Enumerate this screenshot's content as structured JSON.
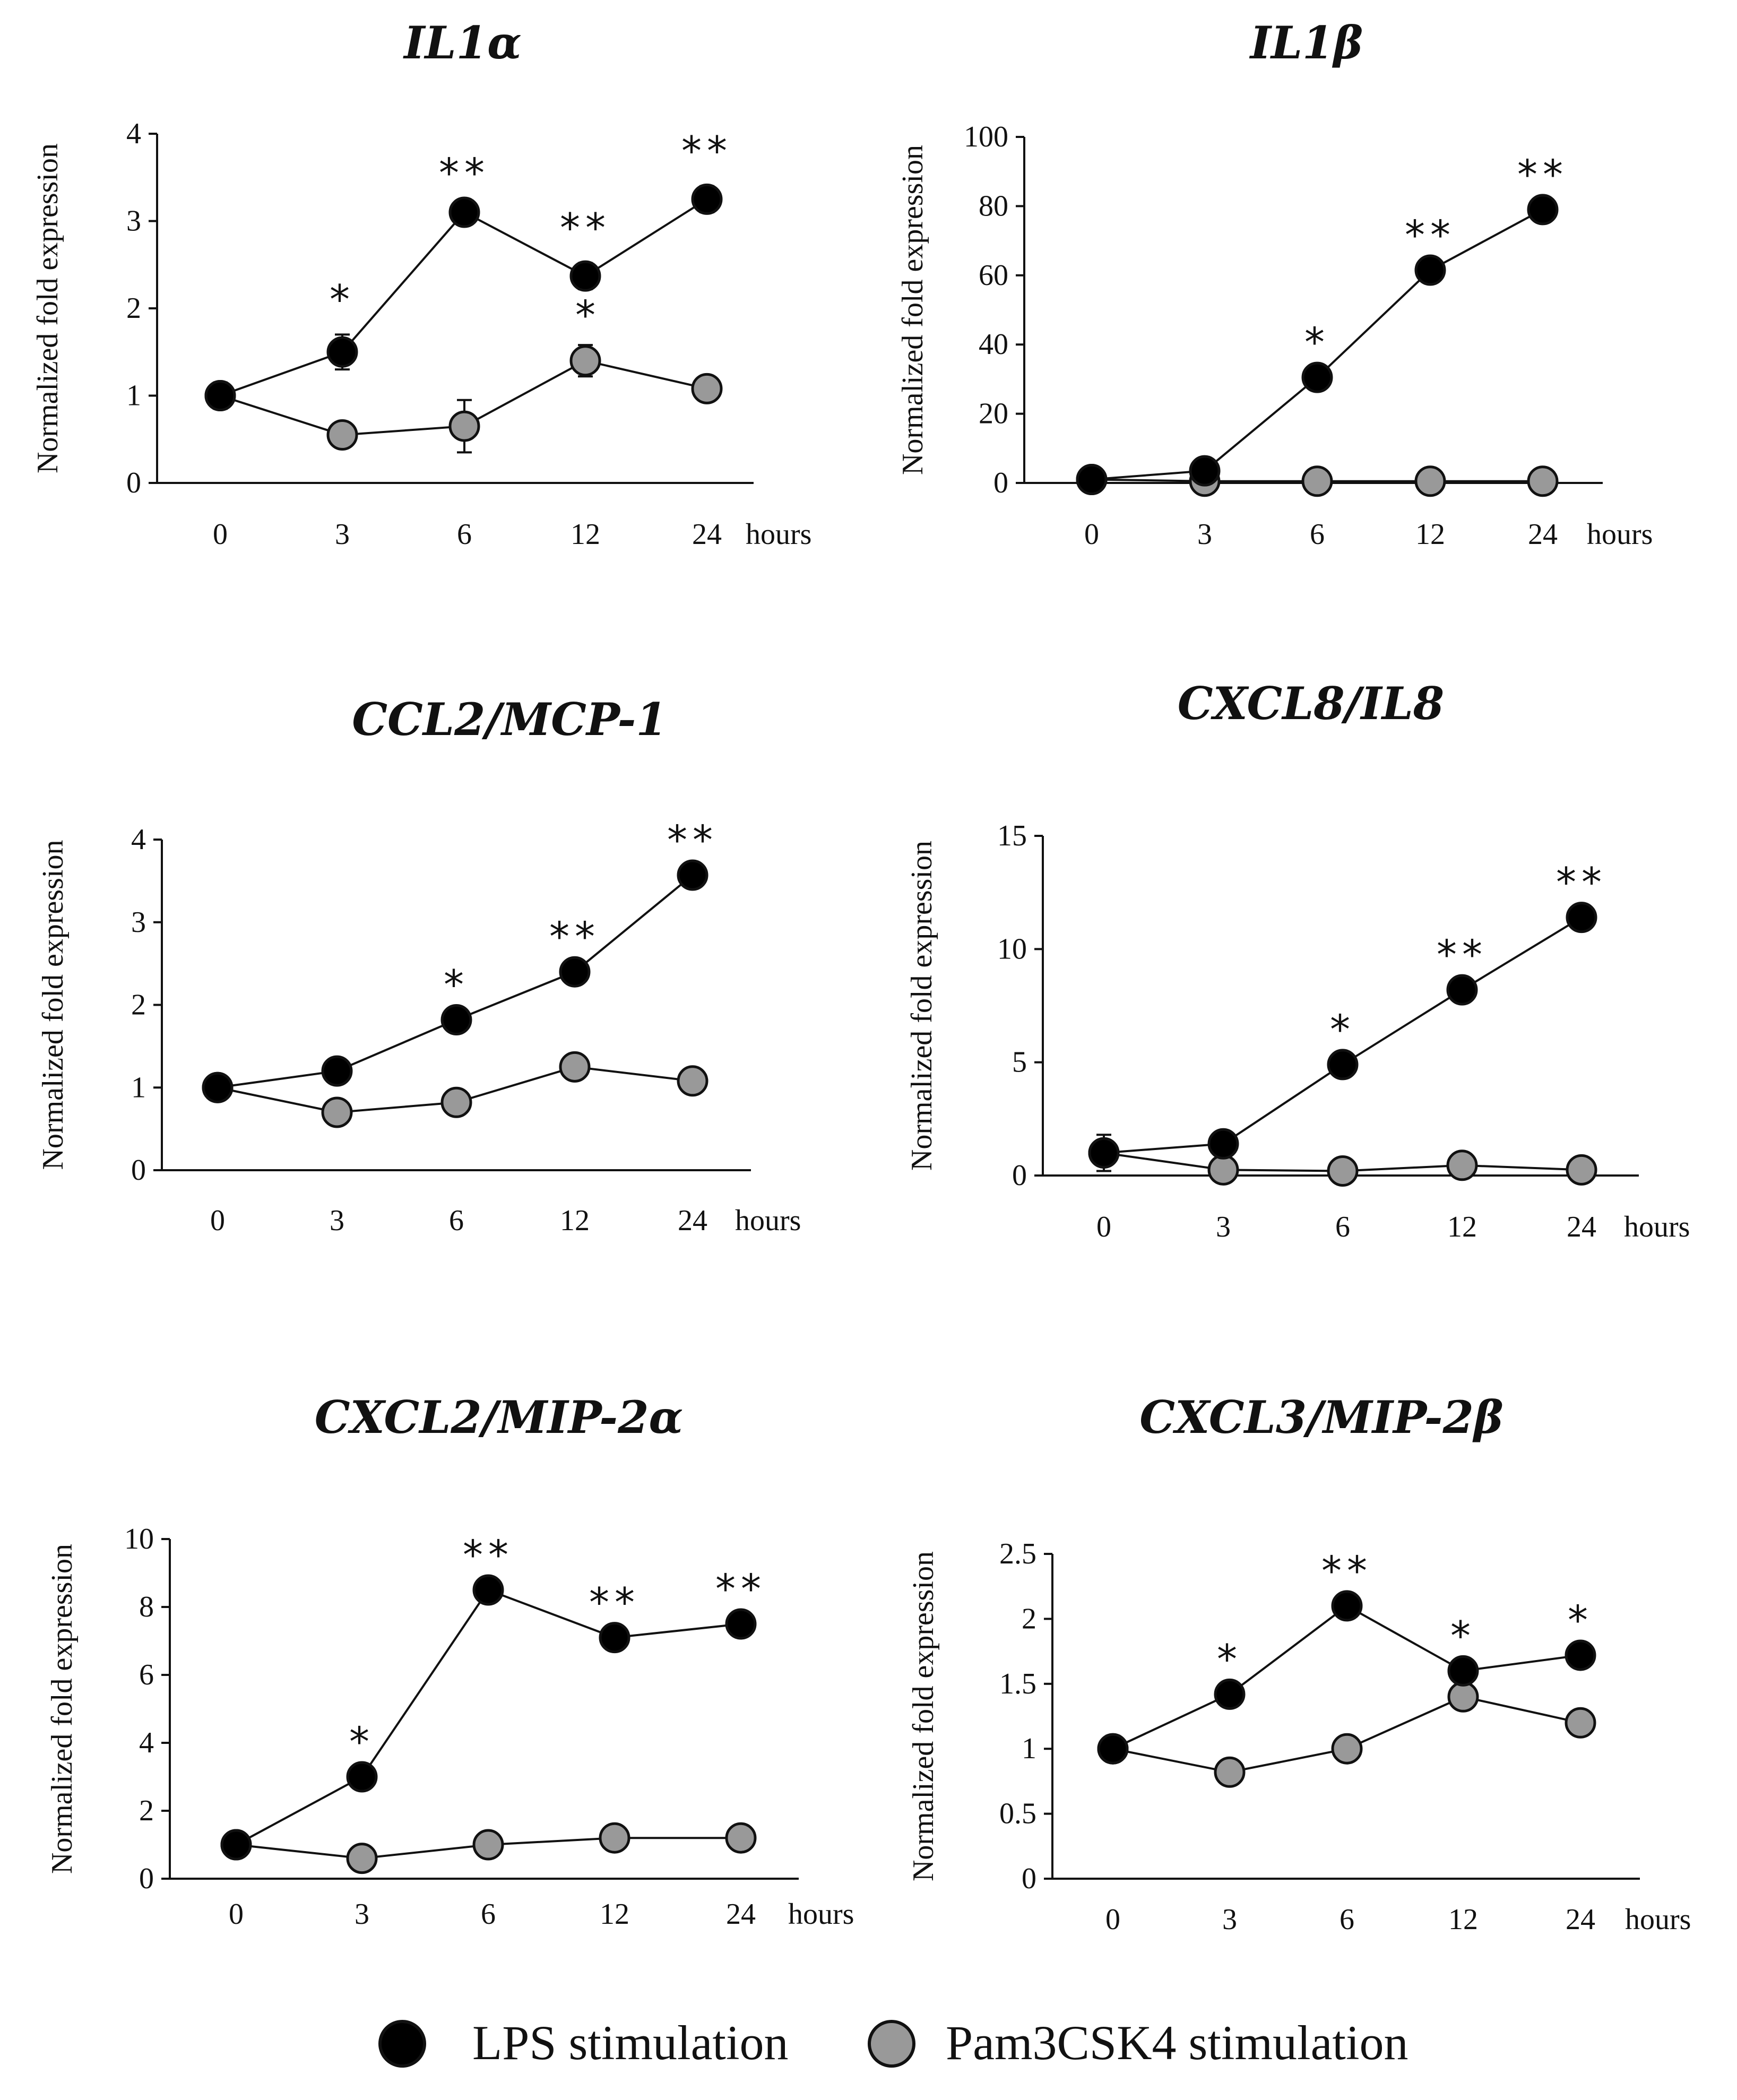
{
  "x_unit_label": "hours",
  "y_axis_label": "Normalized fold expression",
  "colors": {
    "lps": "#000000",
    "pam": "#999999",
    "line": "#111111"
  },
  "legend": [
    {
      "label": "LPS stimulation",
      "color": "#000000"
    },
    {
      "label": "Pam3CSK4 stimulation",
      "color": "#999999"
    }
  ],
  "chart_data": [
    {
      "type": "line",
      "title": "IL1α",
      "categories": [
        "0",
        "3",
        "6",
        "12",
        "24"
      ],
      "ylim": [
        0,
        4
      ],
      "yticks": [
        "0",
        "1",
        "2",
        "3",
        "4"
      ],
      "xlabel": "hours",
      "ylabel": "Normalized fold expression",
      "series": [
        {
          "name": "LPS stimulation",
          "values": [
            1.0,
            1.5,
            3.1,
            2.37,
            3.25
          ],
          "errors": [
            0.15,
            0.2,
            0.05,
            0.15,
            0.15
          ]
        },
        {
          "name": "Pam3CSK4 stimulation",
          "values": [
            1.0,
            0.55,
            0.65,
            1.4,
            1.08
          ],
          "errors": [
            0.15,
            0.05,
            0.3,
            0.18,
            0.12
          ]
        }
      ],
      "annotations": [
        "",
        "*",
        "**",
        "**",
        "**"
      ],
      "annotations_pam": [
        "",
        "",
        "",
        "*",
        ""
      ]
    },
    {
      "type": "line",
      "title": "IL1β",
      "categories": [
        "0",
        "3",
        "6",
        "12",
        "24"
      ],
      "ylim": [
        0,
        100
      ],
      "yticks": [
        "0",
        "20",
        "40",
        "60",
        "80",
        "100"
      ],
      "xlabel": "hours",
      "ylabel": "Normalized fold expression",
      "series": [
        {
          "name": "LPS stimulation",
          "values": [
            1,
            3.5,
            30.5,
            61.5,
            79
          ],
          "errors": [
            0,
            0,
            0,
            0,
            0
          ]
        },
        {
          "name": "Pam3CSK4 stimulation",
          "values": [
            1,
            0.5,
            0.5,
            0.5,
            0.5
          ],
          "errors": [
            0,
            0,
            0,
            0,
            0
          ]
        }
      ],
      "annotations": [
        "",
        "",
        "*",
        "**",
        "**"
      ],
      "annotations_pam": [
        "",
        "",
        "",
        "",
        ""
      ]
    },
    {
      "type": "line",
      "title": "CCL2/MCP-1",
      "categories": [
        "0",
        "3",
        "6",
        "12",
        "24"
      ],
      "ylim": [
        0,
        4
      ],
      "yticks": [
        "0",
        "1",
        "2",
        "3",
        "4"
      ],
      "xlabel": "hours",
      "ylabel": "Normalized fold expression",
      "series": [
        {
          "name": "LPS stimulation",
          "values": [
            1.0,
            1.2,
            1.82,
            2.4,
            3.57
          ],
          "errors": [
            0,
            0,
            0,
            0,
            0
          ]
        },
        {
          "name": "Pam3CSK4 stimulation",
          "values": [
            1.0,
            0.7,
            0.82,
            1.25,
            1.08
          ],
          "errors": [
            0,
            0,
            0,
            0,
            0
          ]
        }
      ],
      "annotations": [
        "",
        "",
        "*",
        "**",
        "**"
      ],
      "annotations_pam": [
        "",
        "",
        "",
        "",
        ""
      ]
    },
    {
      "type": "line",
      "title": "CXCL8/IL8",
      "categories": [
        "0",
        "3",
        "6",
        "12",
        "24"
      ],
      "ylim": [
        0,
        15
      ],
      "yticks": [
        "0",
        "5",
        "10",
        "15"
      ],
      "xlabel": "hours",
      "ylabel": "Normalized fold expression",
      "series": [
        {
          "name": "LPS stimulation",
          "values": [
            1.0,
            1.4,
            4.9,
            8.2,
            11.4
          ],
          "errors": [
            0.8,
            0,
            0,
            0,
            0
          ]
        },
        {
          "name": "Pam3CSK4 stimulation",
          "values": [
            1.0,
            0.25,
            0.2,
            0.45,
            0.25
          ],
          "errors": [
            0,
            0,
            0,
            0,
            0
          ]
        }
      ],
      "annotations": [
        "",
        "",
        "*",
        "**",
        "**"
      ],
      "annotations_pam": [
        "",
        "",
        "",
        "",
        ""
      ]
    },
    {
      "type": "line",
      "title": "CXCL2/MIP-2α",
      "categories": [
        "0",
        "3",
        "6",
        "12",
        "24"
      ],
      "ylim": [
        0,
        10
      ],
      "yticks": [
        "0",
        "2",
        "4",
        "6",
        "8",
        "10"
      ],
      "xlabel": "hours",
      "ylabel": "Normalized fold expression",
      "series": [
        {
          "name": "LPS stimulation",
          "values": [
            1.0,
            3.0,
            8.5,
            7.1,
            7.5
          ],
          "errors": [
            0,
            0,
            0,
            0,
            0
          ]
        },
        {
          "name": "Pam3CSK4 stimulation",
          "values": [
            1.0,
            0.6,
            1.0,
            1.2,
            1.2
          ],
          "errors": [
            0,
            0,
            0,
            0,
            0
          ]
        }
      ],
      "annotations": [
        "",
        "*",
        "**",
        "**",
        "**"
      ],
      "annotations_pam": [
        "",
        "",
        "",
        "",
        ""
      ]
    },
    {
      "type": "line",
      "title": "CXCL3/MIP-2β",
      "categories": [
        "0",
        "3",
        "6",
        "12",
        "24"
      ],
      "ylim": [
        0,
        2.5
      ],
      "yticks": [
        "0",
        "0.5",
        "1",
        "1.5",
        "2",
        "2.5"
      ],
      "xlabel": "hours",
      "ylabel": "Normalized fold expression",
      "series": [
        {
          "name": "LPS stimulation",
          "values": [
            1.0,
            1.42,
            2.1,
            1.6,
            1.72
          ],
          "errors": [
            0.1,
            0,
            0,
            0,
            0
          ]
        },
        {
          "name": "Pam3CSK4 stimulation",
          "values": [
            1.0,
            0.82,
            1.0,
            1.4,
            1.2
          ],
          "errors": [
            0,
            0,
            0,
            0,
            0
          ]
        }
      ],
      "annotations": [
        "",
        "*",
        "**",
        "*",
        "*"
      ],
      "annotations_pam": [
        "",
        "",
        "",
        "",
        ""
      ]
    }
  ]
}
